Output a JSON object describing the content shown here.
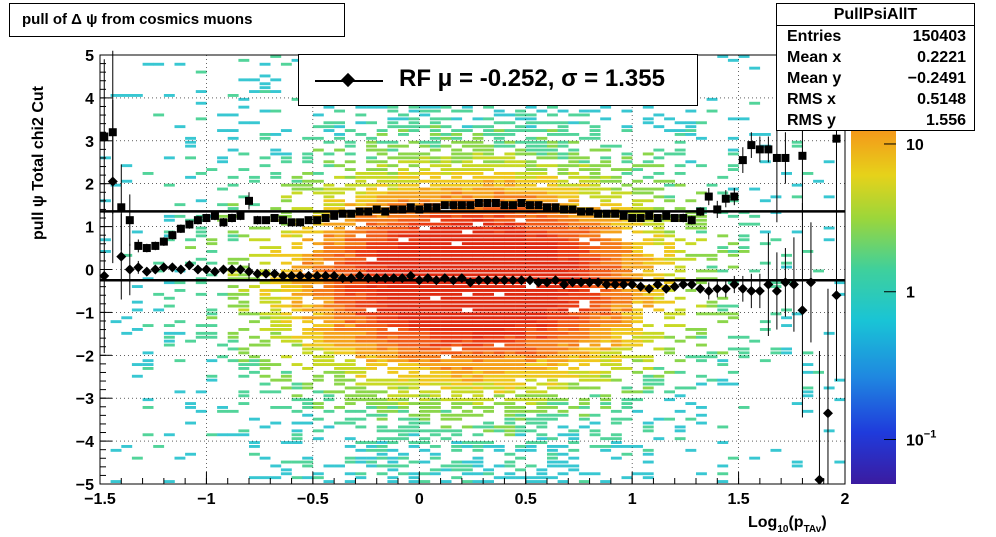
{
  "title": "pull of Δ ψ from cosmics muons",
  "stats": {
    "name": "PullPsiAllT",
    "rows": [
      {
        "label": "Entries",
        "value": "150403"
      },
      {
        "label": "Mean x",
        "value": "0.2221"
      },
      {
        "label": "Mean y",
        "value": "−0.2491"
      },
      {
        "label": "RMS x",
        "value": "0.5148"
      },
      {
        "label": "RMS y",
        "value": "1.556"
      }
    ]
  },
  "legend": {
    "text": "RF μ = -0.252, σ =   1.355"
  },
  "chart_data": {
    "type": "heatmap",
    "xlabel_main": "Log",
    "xlabel_sub": "10",
    "xlabel_arg": "(p",
    "xlabel_argsub": "TAv",
    "xlabel_close": ")",
    "ylabel": "pull ψ    Total chi2 Cut",
    "xlim": [
      -1.5,
      2
    ],
    "ylim": [
      -5,
      5
    ],
    "x_ticks": [
      "−1.5",
      "−1",
      "−0.5",
      "0",
      "0.5",
      "1",
      "1.5",
      "2"
    ],
    "y_ticks": [
      "−5",
      "−4",
      "−3",
      "−2",
      "−1",
      "0",
      "1",
      "2",
      "3",
      "4",
      "5"
    ],
    "colorbar": {
      "scale": "log",
      "min": 0.05,
      "max": 40,
      "labels": [
        "10",
        "1",
        "10"
      ],
      "label_sup": [
        "",
        "",
        "−1"
      ]
    },
    "grid": true,
    "mean_line": {
      "y": -0.252
    },
    "sigma_line": {
      "y": 1.355
    },
    "density": {
      "x_center": 0.25,
      "x_width": 0.6,
      "y_center": -0.25,
      "y_width": 1.6
    },
    "sigma_points": {
      "x": [
        -1.48,
        -1.44,
        -1.4,
        -1.36,
        -1.32,
        -1.28,
        -1.24,
        -1.2,
        -1.16,
        -1.12,
        -1.08,
        -1.04,
        -1.0,
        -0.96,
        -0.92,
        -0.88,
        -0.84,
        -0.8,
        -0.76,
        -0.72,
        -0.68,
        -0.64,
        -0.6,
        -0.56,
        -0.52,
        -0.48,
        -0.44,
        -0.4,
        -0.36,
        -0.32,
        -0.28,
        -0.24,
        -0.2,
        -0.16,
        -0.12,
        -0.08,
        -0.04,
        0.0,
        0.04,
        0.08,
        0.12,
        0.16,
        0.2,
        0.24,
        0.28,
        0.32,
        0.36,
        0.4,
        0.44,
        0.48,
        0.52,
        0.56,
        0.6,
        0.64,
        0.68,
        0.72,
        0.76,
        0.8,
        0.84,
        0.88,
        0.92,
        0.96,
        1.0,
        1.04,
        1.08,
        1.12,
        1.16,
        1.2,
        1.24,
        1.28,
        1.32,
        1.36,
        1.4,
        1.44,
        1.48,
        1.52,
        1.56,
        1.6,
        1.64,
        1.68,
        1.72,
        1.8,
        1.96
      ],
      "y": [
        3.1,
        3.2,
        1.45,
        1.15,
        0.55,
        0.5,
        0.55,
        0.65,
        0.8,
        0.95,
        1.05,
        1.15,
        1.2,
        1.25,
        1.1,
        1.2,
        1.25,
        1.6,
        1.15,
        1.15,
        1.2,
        1.15,
        1.1,
        1.1,
        1.15,
        1.15,
        1.2,
        1.25,
        1.3,
        1.3,
        1.35,
        1.35,
        1.4,
        1.35,
        1.4,
        1.4,
        1.45,
        1.4,
        1.45,
        1.45,
        1.5,
        1.5,
        1.5,
        1.5,
        1.55,
        1.55,
        1.55,
        1.5,
        1.5,
        1.55,
        1.5,
        1.5,
        1.45,
        1.45,
        1.4,
        1.4,
        1.35,
        1.35,
        1.3,
        1.3,
        1.3,
        1.25,
        1.2,
        1.2,
        1.25,
        1.2,
        1.25,
        1.2,
        1.2,
        1.15,
        1.35,
        1.7,
        1.4,
        1.65,
        1.7,
        2.55,
        2.9,
        2.8,
        2.8,
        2.6,
        2.6,
        2.65,
        3.05
      ],
      "err": [
        1.8,
        1.9,
        1.0,
        0.6,
        0.15,
        0.1,
        0.1,
        0.1,
        0.1,
        0.1,
        0.1,
        0.1,
        0.1,
        0.1,
        0.1,
        0.1,
        0.1,
        0.2,
        0.1,
        0.05,
        0.05,
        0.05,
        0.05,
        0.05,
        0.05,
        0.05,
        0.05,
        0.05,
        0.05,
        0.05,
        0.05,
        0.05,
        0.05,
        0.05,
        0.05,
        0.05,
        0.05,
        0.05,
        0.05,
        0.05,
        0.05,
        0.05,
        0.05,
        0.05,
        0.05,
        0.05,
        0.05,
        0.05,
        0.05,
        0.05,
        0.05,
        0.05,
        0.05,
        0.05,
        0.05,
        0.05,
        0.05,
        0.05,
        0.05,
        0.05,
        0.05,
        0.05,
        0.05,
        0.05,
        0.05,
        0.05,
        0.05,
        0.05,
        0.1,
        0.1,
        0.1,
        0.2,
        0.2,
        0.2,
        0.2,
        0.3,
        0.3,
        0.3,
        0.3,
        1.5,
        0.6,
        1.5,
        2.0
      ]
    },
    "mean_points": {
      "x": [
        -1.48,
        -1.44,
        -1.4,
        -1.36,
        -1.32,
        -1.28,
        -1.24,
        -1.2,
        -1.16,
        -1.12,
        -1.08,
        -1.04,
        -1.0,
        -0.96,
        -0.92,
        -0.88,
        -0.84,
        -0.8,
        -0.76,
        -0.72,
        -0.68,
        -0.64,
        -0.6,
        -0.56,
        -0.52,
        -0.48,
        -0.44,
        -0.4,
        -0.36,
        -0.32,
        -0.28,
        -0.24,
        -0.2,
        -0.16,
        -0.12,
        -0.08,
        -0.04,
        0.0,
        0.04,
        0.08,
        0.12,
        0.16,
        0.2,
        0.24,
        0.28,
        0.32,
        0.36,
        0.4,
        0.44,
        0.48,
        0.52,
        0.56,
        0.6,
        0.64,
        0.68,
        0.72,
        0.76,
        0.8,
        0.84,
        0.88,
        0.92,
        0.96,
        1.0,
        1.04,
        1.08,
        1.12,
        1.16,
        1.2,
        1.24,
        1.28,
        1.32,
        1.36,
        1.4,
        1.44,
        1.48,
        1.52,
        1.56,
        1.6,
        1.64,
        1.68,
        1.72,
        1.76,
        1.8,
        1.84,
        1.88,
        1.92,
        1.96
      ],
      "y": [
        -0.15,
        2.05,
        0.3,
        0.0,
        0.05,
        -0.05,
        0.0,
        0.05,
        0.05,
        0.0,
        0.1,
        0.0,
        0.0,
        -0.05,
        0.0,
        0.0,
        0.0,
        -0.05,
        -0.1,
        -0.1,
        -0.1,
        -0.15,
        -0.15,
        -0.15,
        -0.15,
        -0.15,
        -0.15,
        -0.15,
        -0.2,
        -0.2,
        -0.15,
        -0.2,
        -0.2,
        -0.2,
        -0.2,
        -0.2,
        -0.15,
        -0.25,
        -0.2,
        -0.25,
        -0.2,
        -0.25,
        -0.2,
        -0.3,
        -0.25,
        -0.25,
        -0.25,
        -0.25,
        -0.25,
        -0.25,
        -0.25,
        -0.3,
        -0.3,
        -0.25,
        -0.35,
        -0.3,
        -0.3,
        -0.3,
        -0.3,
        -0.35,
        -0.35,
        -0.35,
        -0.35,
        -0.4,
        -0.45,
        -0.35,
        -0.45,
        -0.4,
        -0.35,
        -0.35,
        -0.45,
        -0.5,
        -0.45,
        -0.45,
        -0.35,
        -0.45,
        -0.5,
        -0.5,
        -0.35,
        -0.5,
        -0.3,
        -0.35,
        -0.95,
        -0.3,
        -4.9,
        -3.35,
        -0.6
      ],
      "err": [
        1.8,
        1.9,
        1.0,
        0.6,
        0.15,
        0.1,
        0.1,
        0.1,
        0.1,
        0.1,
        0.1,
        0.1,
        0.1,
        0.1,
        0.1,
        0.1,
        0.1,
        0.2,
        0.1,
        0.05,
        0.05,
        0.05,
        0.05,
        0.05,
        0.05,
        0.05,
        0.05,
        0.05,
        0.05,
        0.05,
        0.05,
        0.05,
        0.05,
        0.05,
        0.05,
        0.05,
        0.05,
        0.05,
        0.05,
        0.05,
        0.05,
        0.05,
        0.05,
        0.05,
        0.05,
        0.05,
        0.05,
        0.05,
        0.05,
        0.05,
        0.05,
        0.05,
        0.05,
        0.05,
        0.05,
        0.05,
        0.05,
        0.05,
        0.05,
        0.05,
        0.05,
        0.05,
        0.05,
        0.05,
        0.05,
        0.05,
        0.05,
        0.05,
        0.1,
        0.1,
        0.1,
        0.2,
        0.2,
        0.2,
        0.2,
        0.3,
        0.4,
        0.4,
        1.2,
        0.9,
        0.8,
        1.1,
        2.5,
        1.4,
        3.0,
        2.9,
        2.0
      ]
    }
  }
}
